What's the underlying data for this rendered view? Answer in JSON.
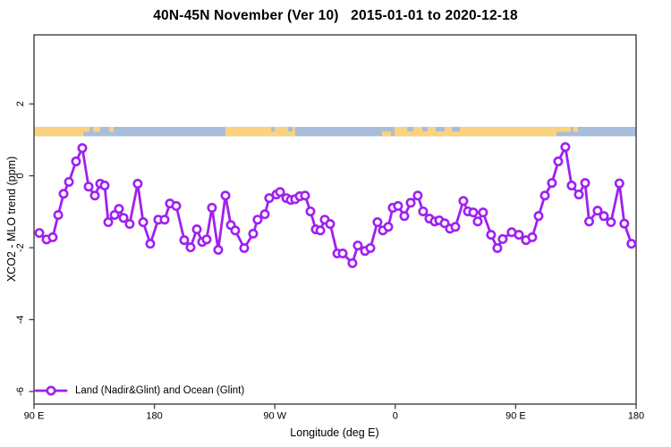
{
  "title": "40N-45N November (Ver 10)   2015-01-01 to 2020-12-18",
  "chart_data": {
    "type": "line",
    "title": "40N-45N November (Ver 10)   2015-01-01 to 2020-12-18",
    "xlabel": "Longitude (deg E)",
    "ylabel": "XCO2 - MLO trend (ppm)",
    "axis_note": "x axis spans 450 degrees of longitude wrapping eastward from 90E to 180",
    "xlim_deg": [
      0,
      450
    ],
    "ylim": [
      -6.35,
      3.92
    ],
    "grid": false,
    "x_ticks": [
      {
        "deg": 0,
        "label": "90 E"
      },
      {
        "deg": 90,
        "label": "180"
      },
      {
        "deg": 180,
        "label": "90 W"
      },
      {
        "deg": 270,
        "label": "0"
      },
      {
        "deg": 360,
        "label": "90 E"
      },
      {
        "deg": 450,
        "label": "180"
      }
    ],
    "y_ticks": [
      {
        "v": 2,
        "label": "2"
      },
      {
        "v": 0,
        "label": "0"
      },
      {
        "v": -2,
        "label": "-2"
      },
      {
        "v": -4,
        "label": "-4"
      },
      {
        "v": -6,
        "label": "-6"
      }
    ],
    "legend": {
      "position": "bottom-left",
      "entries": [
        {
          "label": "Land (Nadir&Glint) and Ocean (Glint)",
          "color": "#A020F0",
          "marker": "open-circle-on-line"
        }
      ]
    },
    "map_band": {
      "description": "land/ocean strip map for 40N-45N along longitude axis",
      "ppm_top": 1.36,
      "ppm_bottom": 1.1,
      "land_color": "#FBD37E",
      "ocean_color": "#A9BDD9",
      "land_segments": [
        [
          0,
          36.8,
          "full"
        ],
        [
          36.8,
          41.5,
          "top"
        ],
        [
          44.1,
          49.5,
          "top"
        ],
        [
          56.2,
          59.5,
          "top"
        ],
        [
          143.1,
          195.2,
          "full"
        ],
        [
          260.1,
          266.8,
          "bottom"
        ],
        [
          269.4,
          278.8,
          "full"
        ],
        [
          278.8,
          283.5,
          "bottom"
        ],
        [
          283.5,
          290.2,
          "full"
        ],
        [
          290.2,
          294.2,
          "bottom"
        ],
        [
          294.2,
          300.2,
          "full"
        ],
        [
          300.2,
          306.9,
          "bottom"
        ],
        [
          306.9,
          390.4,
          "full"
        ],
        [
          390.4,
          401.1,
          "top"
        ],
        [
          403.1,
          406.5,
          "top"
        ]
      ],
      "ocean_overlays": [
        [
          177.2,
          179.9
        ],
        [
          189.9,
          193.2
        ],
        [
          312.3,
          318.3
        ]
      ]
    },
    "series": [
      {
        "name": "Land (Nadir&Glint) and Ocean (Glint)",
        "color": "#A020F0",
        "points": [
          [
            4.0,
            -1.59
          ],
          [
            9.4,
            -1.77
          ],
          [
            14.0,
            -1.71
          ],
          [
            18.1,
            -1.09
          ],
          [
            22.1,
            -0.5
          ],
          [
            26.1,
            -0.17
          ],
          [
            31.4,
            0.4
          ],
          [
            36.1,
            0.77
          ],
          [
            40.8,
            -0.3
          ],
          [
            45.5,
            -0.55
          ],
          [
            49.5,
            -0.22
          ],
          [
            52.8,
            -0.27
          ],
          [
            55.5,
            -1.29
          ],
          [
            60.2,
            -1.09
          ],
          [
            63.5,
            -0.92
          ],
          [
            66.9,
            -1.17
          ],
          [
            71.5,
            -1.34
          ],
          [
            77.5,
            -0.22
          ],
          [
            81.6,
            -1.29
          ],
          [
            86.9,
            -1.89
          ],
          [
            92.9,
            -1.22
          ],
          [
            97.6,
            -1.22
          ],
          [
            101.6,
            -0.77
          ],
          [
            106.3,
            -0.84
          ],
          [
            112.3,
            -1.79
          ],
          [
            117.0,
            -1.99
          ],
          [
            121.7,
            -1.49
          ],
          [
            125.7,
            -1.84
          ],
          [
            129.0,
            -1.77
          ],
          [
            133.0,
            -0.89
          ],
          [
            137.7,
            -2.06
          ],
          [
            143.1,
            -0.55
          ],
          [
            147.1,
            -1.37
          ],
          [
            150.4,
            -1.52
          ],
          [
            157.1,
            -2.01
          ],
          [
            163.8,
            -1.61
          ],
          [
            167.1,
            -1.22
          ],
          [
            172.5,
            -1.07
          ],
          [
            175.8,
            -0.62
          ],
          [
            181.2,
            -0.52
          ],
          [
            183.9,
            -0.45
          ],
          [
            188.6,
            -0.62
          ],
          [
            191.9,
            -0.67
          ],
          [
            195.2,
            -0.65
          ],
          [
            198.6,
            -0.57
          ],
          [
            202.6,
            -0.55
          ],
          [
            206.6,
            -0.99
          ],
          [
            210.6,
            -1.49
          ],
          [
            214.0,
            -1.52
          ],
          [
            217.3,
            -1.22
          ],
          [
            221.3,
            -1.34
          ],
          [
            226.7,
            -2.16
          ],
          [
            230.7,
            -2.16
          ],
          [
            238.0,
            -2.43
          ],
          [
            242.0,
            -1.94
          ],
          [
            247.4,
            -2.09
          ],
          [
            251.4,
            -2.01
          ],
          [
            256.7,
            -1.29
          ],
          [
            260.7,
            -1.52
          ],
          [
            264.8,
            -1.42
          ],
          [
            268.1,
            -0.89
          ],
          [
            272.1,
            -0.84
          ],
          [
            276.8,
            -1.12
          ],
          [
            281.5,
            -0.75
          ],
          [
            286.8,
            -0.55
          ],
          [
            290.8,
            -0.99
          ],
          [
            295.5,
            -1.19
          ],
          [
            299.5,
            -1.27
          ],
          [
            302.9,
            -1.24
          ],
          [
            306.9,
            -1.32
          ],
          [
            310.9,
            -1.47
          ],
          [
            314.9,
            -1.42
          ],
          [
            320.9,
            -0.7
          ],
          [
            324.3,
            -0.99
          ],
          [
            328.3,
            -1.02
          ],
          [
            331.6,
            -1.27
          ],
          [
            335.6,
            -1.02
          ],
          [
            341.6,
            -1.64
          ],
          [
            346.3,
            -2.01
          ],
          [
            350.3,
            -1.76
          ],
          [
            357.0,
            -1.57
          ],
          [
            362.4,
            -1.64
          ],
          [
            367.7,
            -1.79
          ],
          [
            372.4,
            -1.71
          ],
          [
            377.1,
            -1.12
          ],
          [
            381.8,
            -0.55
          ],
          [
            387.1,
            -0.2
          ],
          [
            391.8,
            0.4
          ],
          [
            397.1,
            0.8
          ],
          [
            401.8,
            -0.27
          ],
          [
            407.2,
            -0.52
          ],
          [
            411.9,
            -0.2
          ],
          [
            414.9,
            -1.27
          ],
          [
            421.2,
            -0.97
          ],
          [
            425.9,
            -1.12
          ],
          [
            431.2,
            -1.29
          ],
          [
            437.5,
            -0.21
          ],
          [
            441.2,
            -1.33
          ],
          [
            446.5,
            -1.89
          ]
        ]
      }
    ]
  },
  "colors": {
    "series_purple": "#A020F0",
    "land": "#FBD37E",
    "ocean": "#A9BDD9",
    "axis": "#404040",
    "text": "#000000"
  }
}
